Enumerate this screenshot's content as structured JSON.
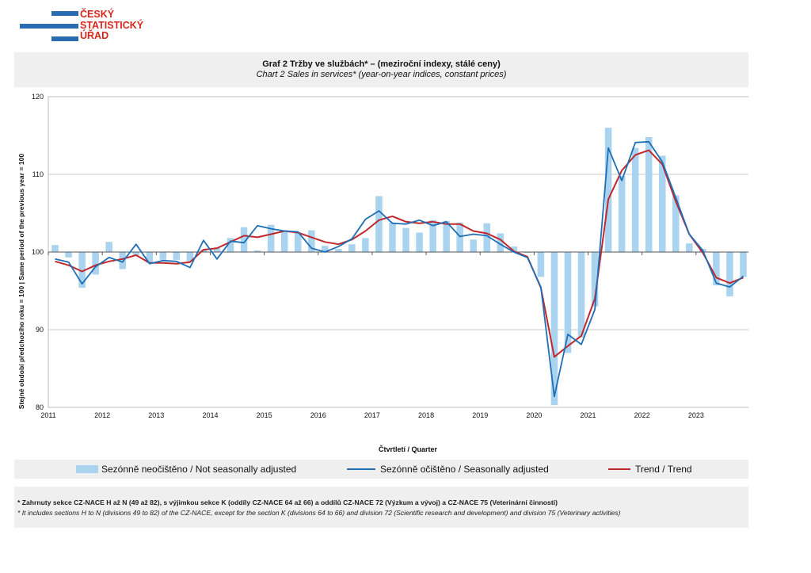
{
  "logo": {
    "line1": "ČESKÝ",
    "line2": "STATISTICKÝ",
    "line3": "ÚŘAD"
  },
  "header": {
    "title": "Graf 2  Tržby ve službách* – (meziroční indexy, stálé ceny)",
    "subtitle": "Chart 2  Sales in services* (year-on-year indices, constant prices)"
  },
  "chart_data": {
    "type": "bar+line",
    "ylabel": "Stejné období předchozího roku = 100 | Same period of the previous year = 100",
    "xlabel": "Čtvrtletí / Quarter",
    "ylim": [
      80,
      120
    ],
    "yticks": [
      80,
      90,
      100,
      110,
      120
    ],
    "baseline": 100,
    "xticks": [
      "2011",
      "2012",
      "2013",
      "2014",
      "2015",
      "2016",
      "2017",
      "2018",
      "2019",
      "2020",
      "2021",
      "2022",
      "2023"
    ],
    "grid": "horizontal",
    "legend_position": "bottom",
    "colors": {
      "bars": "#a9d3ee",
      "seasonally_adjusted": "#1f6fb5",
      "trend": "#c0282e"
    },
    "series": [
      {
        "name": "Sezónně neočištěno / Not seasonally adjusted",
        "kind": "bar",
        "values": [
          100.9,
          99.3,
          95.4,
          97.1,
          101.3,
          97.8,
          99.6,
          98.6,
          99.0,
          99.0,
          98.8,
          100.3,
          100.5,
          101.8,
          103.2,
          100.2,
          103.5,
          102.8,
          102.5,
          102.8,
          100.8,
          100.4,
          101.0,
          101.8,
          107.2,
          103.8,
          103.1,
          102.5,
          104.1,
          104.0,
          103.8,
          101.6,
          103.7,
          102.4,
          100.7,
          99.9,
          96.8,
          80.3,
          87.0,
          89.0,
          93.0,
          116.0,
          109.8,
          113.4,
          114.8,
          112.4,
          107.3,
          101.1,
          100.4,
          95.7,
          94.3,
          96.8
        ]
      },
      {
        "name": "Sezónně očištěno / Seasonally adjusted",
        "kind": "line",
        "values": [
          99.1,
          98.7,
          95.9,
          98.1,
          99.3,
          98.7,
          101.0,
          98.5,
          98.9,
          98.8,
          98.0,
          101.5,
          99.1,
          101.4,
          101.2,
          103.4,
          103.0,
          102.7,
          102.6,
          100.5,
          100.0,
          100.7,
          101.7,
          104.2,
          105.3,
          103.7,
          103.6,
          104.1,
          103.4,
          103.9,
          102.0,
          102.3,
          102.1,
          101.0,
          100.0,
          99.3,
          95.5,
          81.4,
          89.4,
          88.1,
          92.6,
          113.4,
          109.2,
          114.1,
          114.2,
          111.6,
          107.0,
          102.3,
          100.2,
          96.0,
          95.5,
          96.9
        ]
      },
      {
        "name": "Trend / Trend",
        "kind": "line",
        "values": [
          98.8,
          98.3,
          97.5,
          98.3,
          98.8,
          99.1,
          99.6,
          98.6,
          98.6,
          98.5,
          98.7,
          100.3,
          100.5,
          101.3,
          102.1,
          101.9,
          102.3,
          102.7,
          102.5,
          101.9,
          101.3,
          101.0,
          101.6,
          102.7,
          104.1,
          104.6,
          103.9,
          103.7,
          103.9,
          103.6,
          103.6,
          102.7,
          102.4,
          101.6,
          100.1,
          99.4,
          95.4,
          86.5,
          87.9,
          89.2,
          94.0,
          106.8,
          110.5,
          112.5,
          113.1,
          111.3,
          106.5,
          102.3,
          99.9,
          96.7,
          96.0,
          96.7
        ]
      }
    ]
  },
  "legend": {
    "bars_label": "Sezónně neočištěno / Not seasonally adjusted",
    "sa_label": "Sezónně očištěno / Seasonally adjusted",
    "trend_label": "Trend / Trend"
  },
  "footnotes": {
    "czech": "* Zahrnuty sekce CZ-NACE H až N (49 až 82), s výjimkou sekce  K (oddíly CZ-NACE 64 až 66) a oddílů CZ-NACE 72 (Výzkum a vývoj) a CZ-NACE 75 (Veterinární činnosti)",
    "english": "* It includes sections H to N (divisions 49 to 82) of the CZ-NACE, except for the section K (divisions 64 to 66) and division 72 (Scientific research and development) and division 75 (Veterinary activities)"
  }
}
